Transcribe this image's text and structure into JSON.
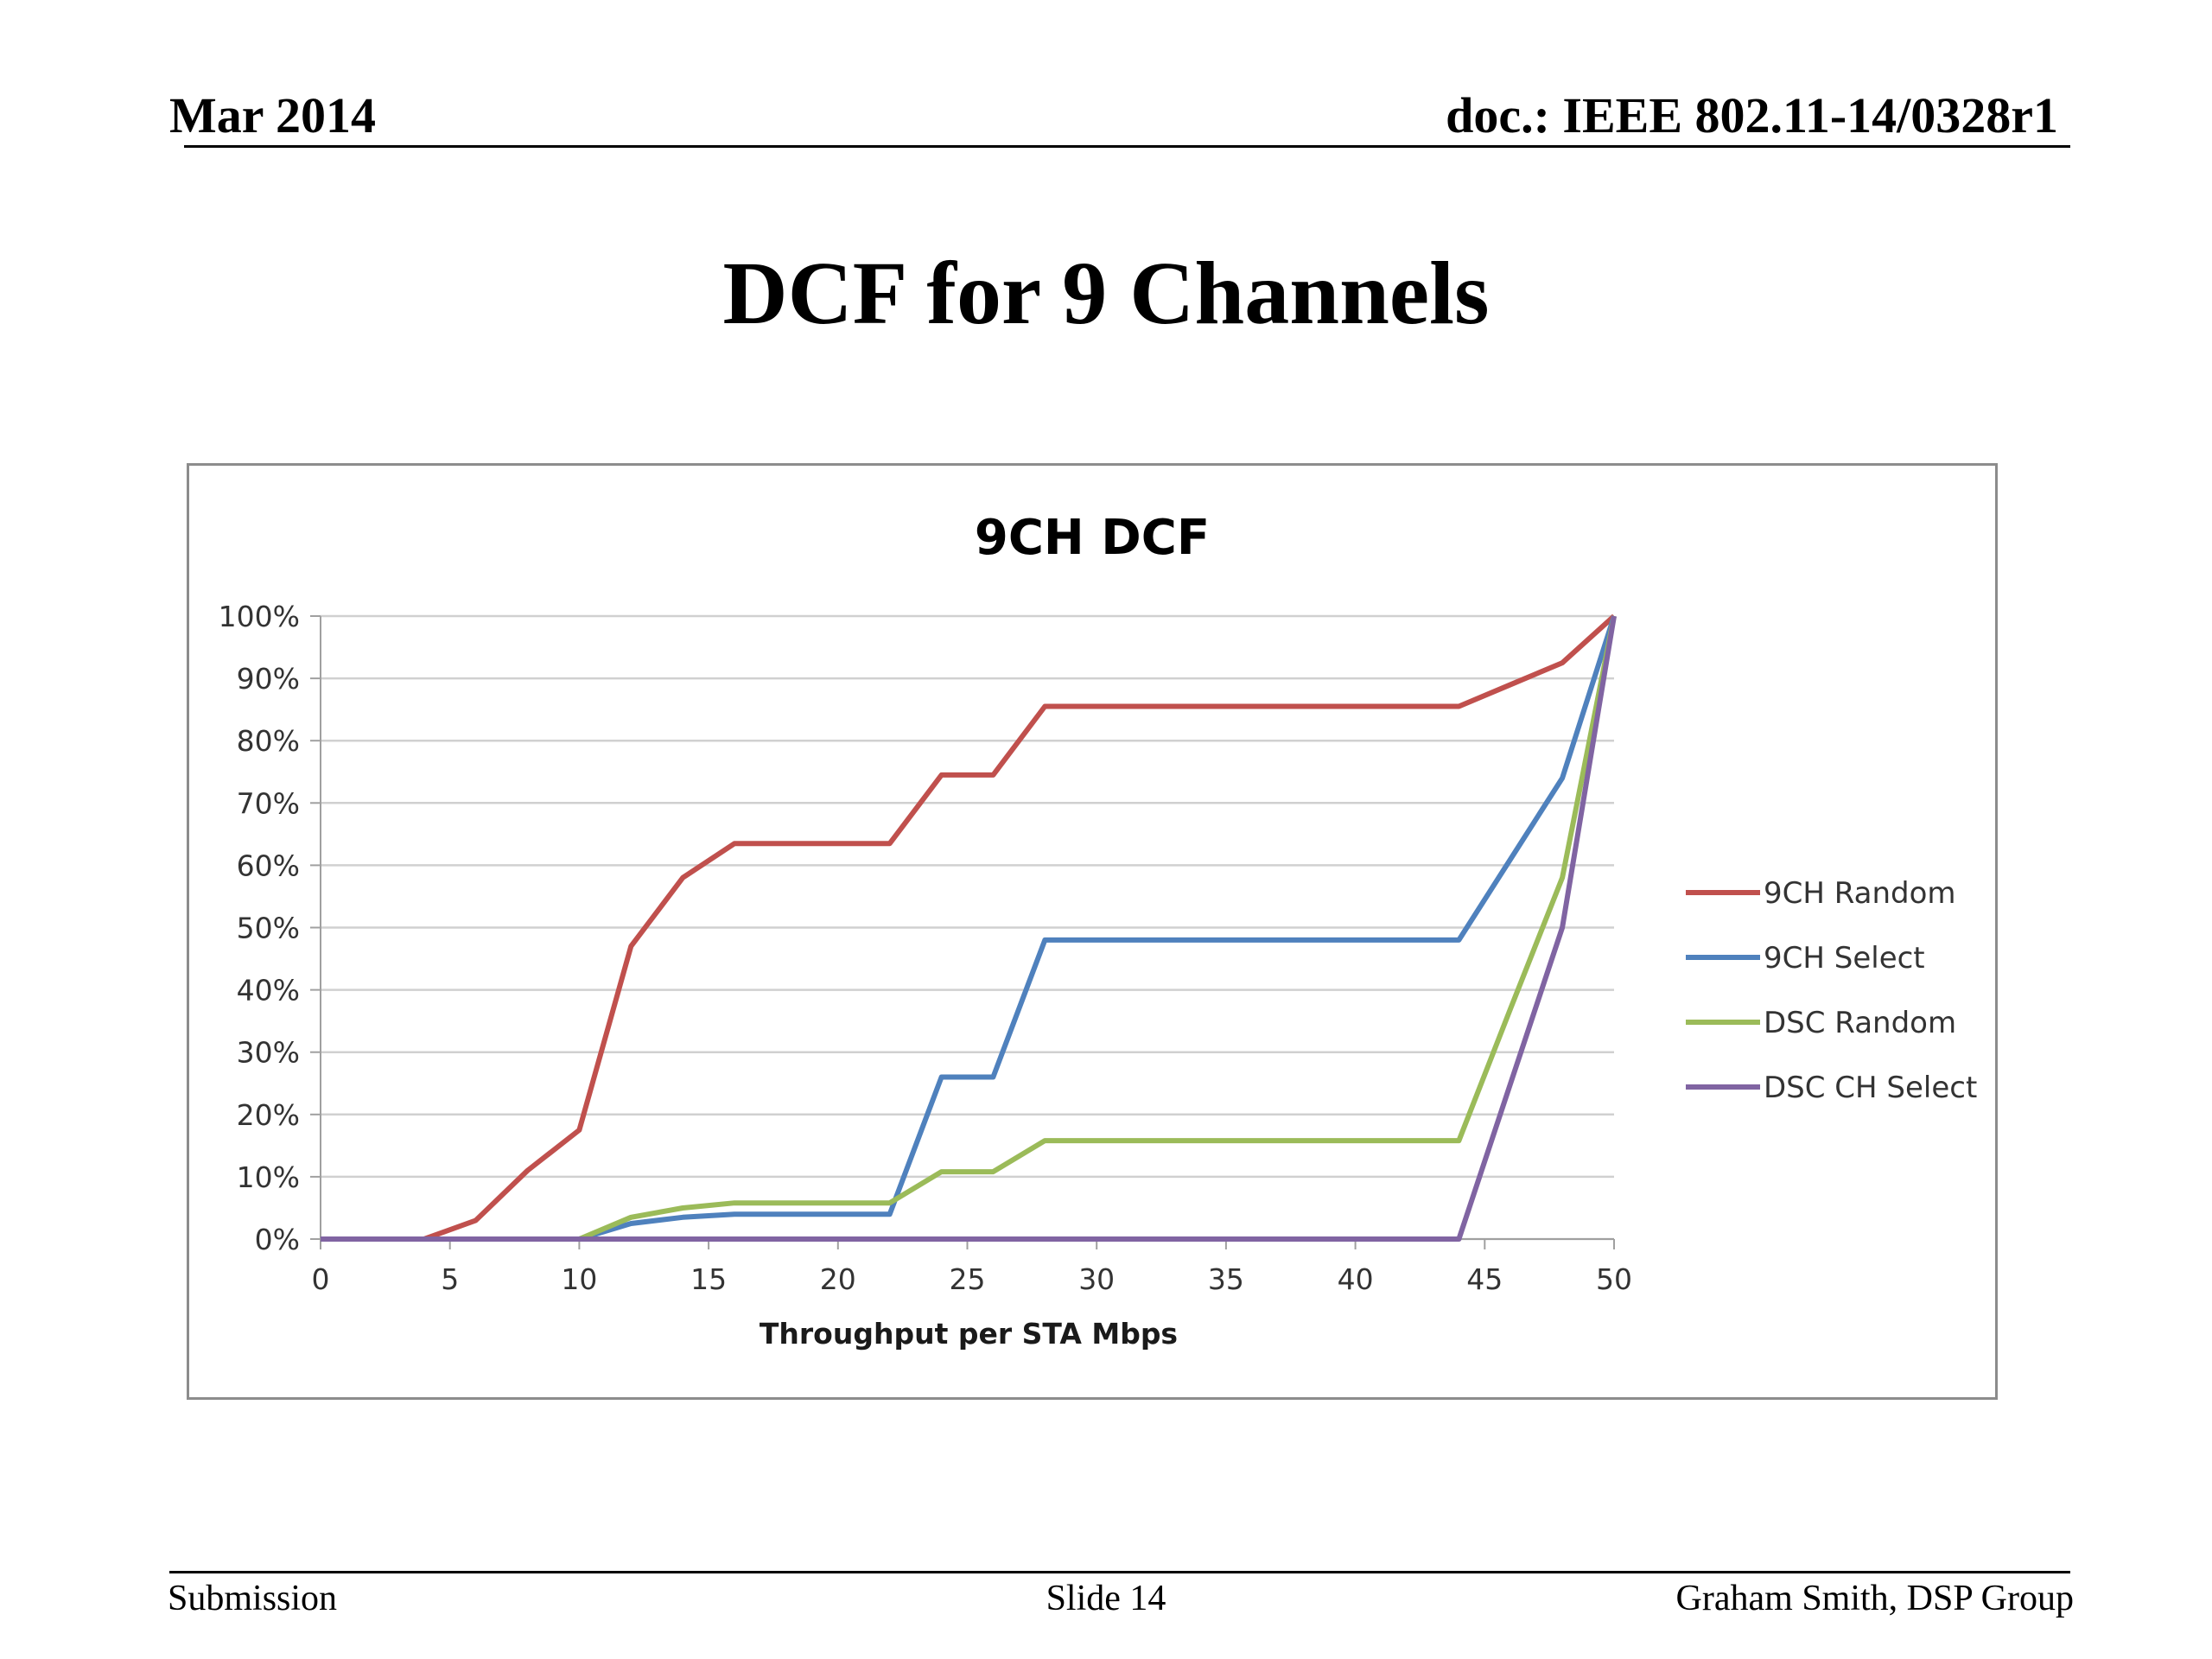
{
  "header": {
    "date": "Mar 2014",
    "doc": "doc.: IEEE 802.11-14/0328r1"
  },
  "slide_title": "DCF for 9 Channels",
  "footer": {
    "left": "Submission",
    "center": "Slide 14",
    "right": "Graham Smith, DSP Group"
  },
  "chart_data": {
    "type": "line",
    "title": "9CH DCF",
    "xlabel": "Throughput per STA Mbps",
    "ylabel": "",
    "xlim": [
      0,
      50
    ],
    "ylim": [
      0,
      1
    ],
    "xticks": [
      0,
      5,
      10,
      15,
      20,
      25,
      30,
      35,
      40,
      45,
      50
    ],
    "yticks": [
      0,
      0.1,
      0.2,
      0.3,
      0.4,
      0.5,
      0.6,
      0.7,
      0.8,
      0.9,
      1.0
    ],
    "ytick_labels": [
      "0%",
      "10%",
      "20%",
      "30%",
      "40%",
      "50%",
      "60%",
      "70%",
      "80%",
      "90%",
      "100%"
    ],
    "grid": true,
    "legend": "right",
    "series": [
      {
        "name": "9CH Random",
        "color": "#c0504d",
        "x": [
          0,
          4,
          6,
          8,
          10,
          12,
          14,
          16,
          18,
          20,
          22,
          24,
          26,
          28,
          30,
          32,
          34,
          36,
          38,
          40,
          42,
          44,
          46,
          48,
          50
        ],
        "y": [
          0,
          0,
          0.03,
          0.11,
          0.175,
          0.47,
          0.58,
          0.635,
          0.635,
          0.635,
          0.635,
          0.745,
          0.745,
          0.855,
          0.855,
          0.855,
          0.855,
          0.855,
          0.855,
          0.855,
          0.855,
          0.855,
          0.89,
          0.925,
          1.0
        ]
      },
      {
        "name": "9CH Select",
        "color": "#4f81bd",
        "x": [
          0,
          10,
          12,
          14,
          16,
          18,
          20,
          22,
          24,
          26,
          28,
          30,
          32,
          34,
          36,
          38,
          40,
          42,
          44,
          46,
          48,
          50
        ],
        "y": [
          0,
          0,
          0.025,
          0.035,
          0.04,
          0.04,
          0.04,
          0.04,
          0.26,
          0.26,
          0.48,
          0.48,
          0.48,
          0.48,
          0.48,
          0.48,
          0.48,
          0.48,
          0.48,
          0.61,
          0.74,
          1.0
        ]
      },
      {
        "name": "DSC Random",
        "color": "#9bbb59",
        "x": [
          0,
          10,
          12,
          14,
          16,
          18,
          20,
          22,
          24,
          26,
          28,
          30,
          32,
          34,
          36,
          38,
          40,
          42,
          44,
          46,
          48,
          50
        ],
        "y": [
          0,
          0,
          0.035,
          0.05,
          0.058,
          0.058,
          0.058,
          0.058,
          0.108,
          0.108,
          0.158,
          0.158,
          0.158,
          0.158,
          0.158,
          0.158,
          0.158,
          0.158,
          0.158,
          0.37,
          0.58,
          1.0
        ]
      },
      {
        "name": "DSC CH Select",
        "color": "#8064a2",
        "x": [
          0,
          44,
          46,
          48,
          50
        ],
        "y": [
          0,
          0,
          0.25,
          0.5,
          1.0
        ]
      }
    ]
  }
}
